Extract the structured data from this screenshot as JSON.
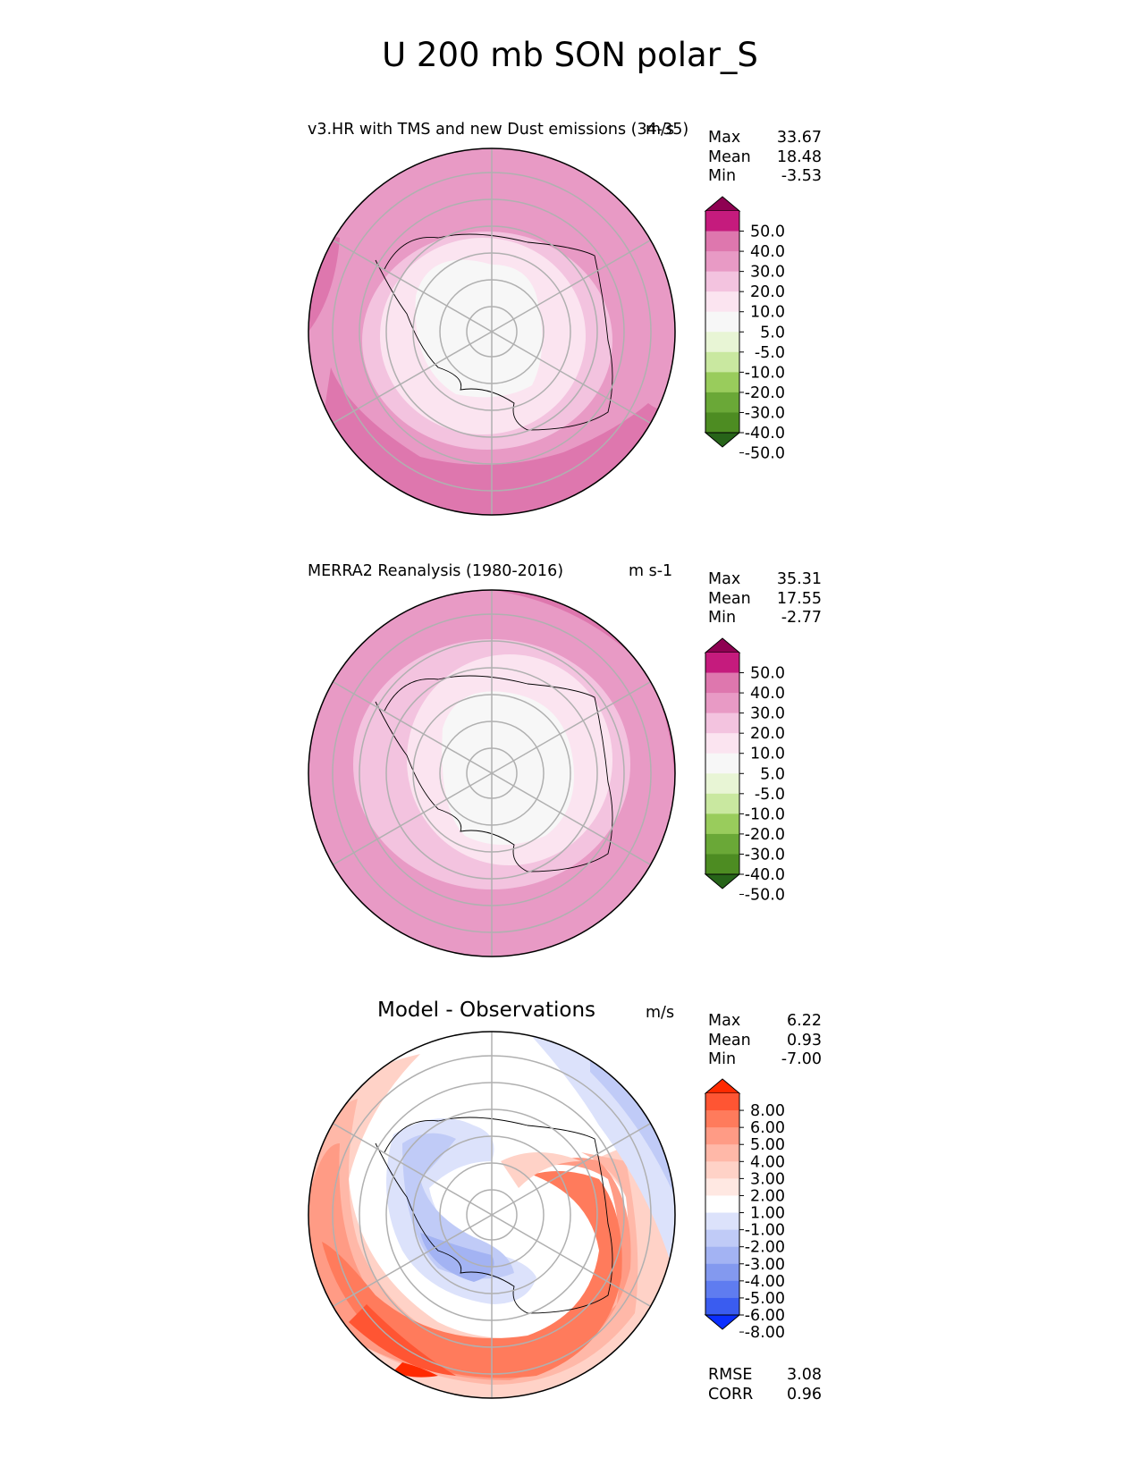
{
  "title": "U 200 mb SON polar_S",
  "panels": [
    {
      "id": "test",
      "title": "v3.HR with TMS and new Dust emissions (34-35)",
      "units": "m/s",
      "stats": {
        "max": "33.67",
        "mean": "18.48",
        "min": "-3.53"
      },
      "colorbar": {
        "levels": [
          "50.0",
          "40.0",
          "30.0",
          "20.0",
          "10.0",
          "5.0",
          "-5.0",
          "-10.0",
          "-20.0",
          "-30.0",
          "-40.0",
          "-50.0"
        ],
        "colors": [
          "#8e0152",
          "#c51b7d",
          "#de77ae",
          "#e89ac5",
          "#f3c3df",
          "#fbe4f0",
          "#f7f7f7",
          "#e8f5d5",
          "#c9e8a0",
          "#99cc5c",
          "#6aa837",
          "#4d8c22",
          "#276419"
        ]
      }
    },
    {
      "id": "ref",
      "title": "MERRA2 Reanalysis (1980-2016)",
      "units": "m s-1",
      "stats": {
        "max": "35.31",
        "mean": "17.55",
        "min": "-2.77"
      },
      "colorbar": {
        "levels": [
          "50.0",
          "40.0",
          "30.0",
          "20.0",
          "10.0",
          "5.0",
          "-5.0",
          "-10.0",
          "-20.0",
          "-30.0",
          "-40.0",
          "-50.0"
        ],
        "colors": [
          "#8e0152",
          "#c51b7d",
          "#de77ae",
          "#e89ac5",
          "#f3c3df",
          "#fbe4f0",
          "#f7f7f7",
          "#e8f5d5",
          "#c9e8a0",
          "#99cc5c",
          "#6aa837",
          "#4d8c22",
          "#276419"
        ]
      }
    },
    {
      "id": "diff",
      "title": "Model - Observations",
      "units": "m/s",
      "stats": {
        "max": "6.22",
        "mean": "0.93",
        "min": "-7.00"
      },
      "colorbar": {
        "levels": [
          "8.00",
          "6.00",
          "5.00",
          "4.00",
          "3.00",
          "2.00",
          "1.00",
          "-1.00",
          "-2.00",
          "-3.00",
          "-4.00",
          "-5.00",
          "-6.00",
          "-8.00"
        ],
        "colors": [
          "#ff2a00",
          "#ff5533",
          "#ff7b5c",
          "#ff9b85",
          "#ffb8a8",
          "#ffd2c7",
          "#ffe8e2",
          "#ffffff",
          "#dce2fb",
          "#c0cbf7",
          "#a3b3f3",
          "#8399ef",
          "#5f7cf0",
          "#3a5cf0",
          "#0a2eff"
        ]
      },
      "rmse": {
        "label": "RMSE",
        "value": "3.08"
      },
      "corr": {
        "label": "CORR",
        "value": "0.96"
      }
    }
  ],
  "chart_data": [
    {
      "type": "heatmap",
      "title": "v3.HR with TMS and new Dust emissions (34-35)",
      "projection": "south polar stereographic",
      "units": "m/s",
      "stats": {
        "max": 33.67,
        "mean": 18.48,
        "min": -3.53
      },
      "contour_levels": [
        -50,
        -40,
        -30,
        -20,
        -10,
        -5,
        5,
        10,
        20,
        30,
        40,
        50
      ],
      "rings": [
        {
          "level_band": "30 to 40",
          "color": "#de77ae"
        },
        {
          "level_band": "20 to 30",
          "color": "#e89ac5"
        },
        {
          "level_band": "10 to 20",
          "color": "#f3c3df"
        },
        {
          "level_band": "5 to 10",
          "color": "#fbe4f0"
        },
        {
          "level_band": "-5 to 5",
          "color": "#f7f7f7"
        }
      ]
    },
    {
      "type": "heatmap",
      "title": "MERRA2 Reanalysis (1980-2016)",
      "projection": "south polar stereographic",
      "units": "m s-1",
      "stats": {
        "max": 35.31,
        "mean": 17.55,
        "min": -2.77
      },
      "contour_levels": [
        -50,
        -40,
        -30,
        -20,
        -10,
        -5,
        5,
        10,
        20,
        30,
        40,
        50
      ],
      "rings": [
        {
          "level_band": "20 to 30",
          "color": "#e89ac5"
        },
        {
          "level_band": "10 to 20",
          "color": "#f3c3df"
        },
        {
          "level_band": "5 to 10",
          "color": "#fbe4f0"
        },
        {
          "level_band": "-5 to 5",
          "color": "#f7f7f7"
        }
      ]
    },
    {
      "type": "heatmap",
      "title": "Model - Observations",
      "projection": "south polar stereographic",
      "units": "m/s",
      "stats": {
        "max": 6.22,
        "mean": 0.93,
        "min": -7.0,
        "rmse": 3.08,
        "corr": 0.96
      },
      "contour_levels": [
        -8,
        -6,
        -5,
        -4,
        -3,
        -2,
        -1,
        1,
        2,
        3,
        4,
        5,
        6,
        8
      ]
    }
  ]
}
